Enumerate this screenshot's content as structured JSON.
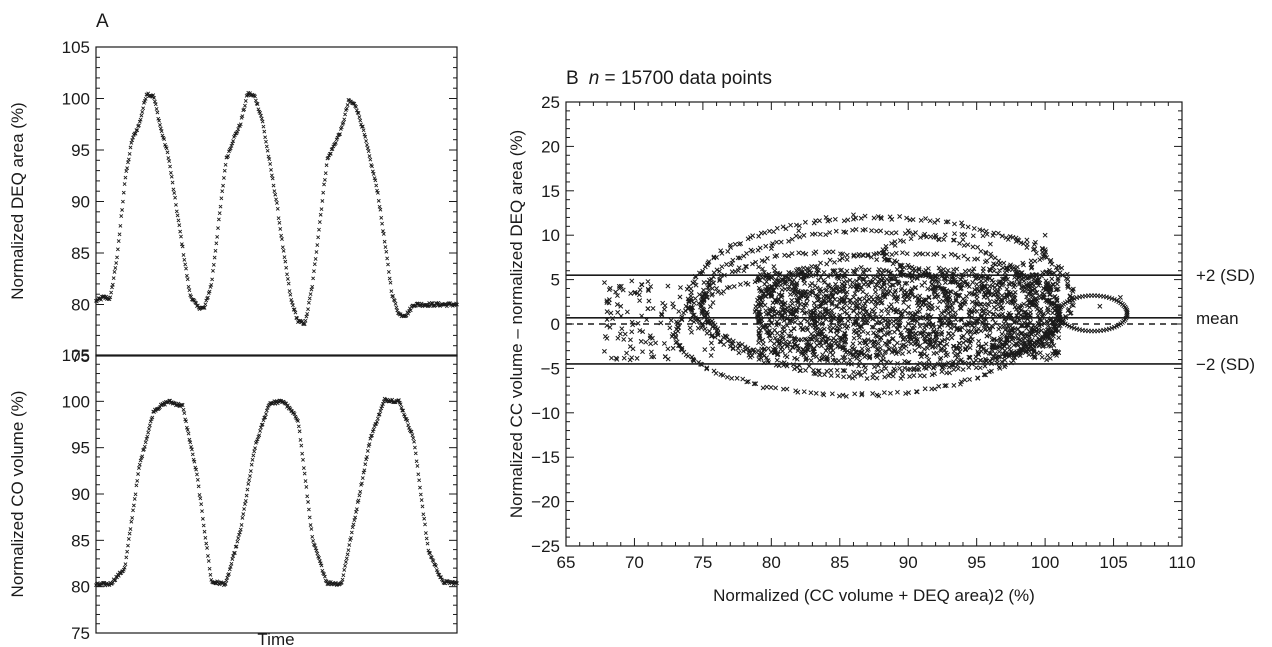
{
  "panel_a_label": "A",
  "panel_b_label": "B",
  "panel_b_n_italic": "n",
  "panel_b_n_text": " = 15700 data points",
  "chart_data": [
    {
      "type": "scatter",
      "panel": "A-top",
      "xlabel": "",
      "ylabel": "Normalized DEQ area (%)",
      "ylim": [
        75,
        105
      ],
      "yticks": [
        75,
        80,
        85,
        90,
        95,
        100,
        105
      ],
      "marker": "x",
      "color": "#1a1a1a",
      "series": [
        {
          "x": [
            0,
            0.02,
            0.04,
            0.06,
            0.08,
            0.1,
            0.12,
            0.14,
            0.16,
            0.18,
            0.2,
            0.22,
            0.24,
            0.26,
            0.28,
            0.3,
            0.32,
            0.34,
            0.36,
            0.38,
            0.4,
            0.42,
            0.44,
            0.46,
            0.48,
            0.5,
            0.52,
            0.54,
            0.56,
            0.58,
            0.6,
            0.62,
            0.64,
            0.66,
            0.68,
            0.7,
            0.72,
            0.74,
            0.76,
            0.78,
            0.8,
            0.82,
            0.84,
            0.86,
            0.88,
            0.9,
            0.92,
            0.94,
            0.96,
            0.98,
            1
          ],
          "y": [
            80.3,
            80.7,
            80.6,
            85,
            92,
            96,
            97.5,
            100.5,
            100.2,
            97,
            94.5,
            90,
            85.5,
            81,
            79.8,
            79.6,
            82,
            88,
            94,
            96,
            97.5,
            100.5,
            100.2,
            98,
            94,
            90,
            85,
            80.5,
            78.3,
            78.2,
            82,
            88,
            94,
            95.5,
            97,
            99.8,
            99.3,
            97,
            94,
            91,
            86,
            81,
            79,
            79,
            80,
            80,
            80,
            80,
            80,
            80,
            80
          ]
        }
      ]
    },
    {
      "type": "scatter",
      "panel": "A-bottom",
      "xlabel": "Time",
      "ylabel": "Normalized CO volume (%)",
      "ylim": [
        75,
        105
      ],
      "yticks": [
        75,
        80,
        85,
        90,
        95,
        100,
        105
      ],
      "marker": "x",
      "color": "#1a1a1a",
      "series": [
        {
          "x": [
            0,
            0.04,
            0.08,
            0.12,
            0.16,
            0.2,
            0.24,
            0.28,
            0.32,
            0.36,
            0.4,
            0.44,
            0.48,
            0.52,
            0.56,
            0.6,
            0.64,
            0.68,
            0.72,
            0.76,
            0.8,
            0.84,
            0.88,
            0.92,
            0.96,
            1
          ],
          "y": [
            80.2,
            80.3,
            82,
            93,
            99,
            100,
            99.5,
            92,
            80.5,
            80.3,
            86,
            95,
            99.8,
            100,
            98,
            85,
            80.4,
            80.3,
            88,
            96,
            100.2,
            100,
            96,
            84,
            80.5,
            80.4
          ]
        }
      ]
    },
    {
      "type": "scatter",
      "panel": "B",
      "title": "",
      "xlabel": "Normalized (CC volume + DEQ area)2 (%)",
      "ylabel": "Normalized CC volume – normalized DEQ area (%)",
      "xlim": [
        65,
        110
      ],
      "ylim": [
        -25,
        25
      ],
      "xticks": [
        65,
        70,
        75,
        80,
        85,
        90,
        95,
        100,
        105,
        110
      ],
      "yticks": [
        -25,
        -20,
        -15,
        -10,
        -5,
        0,
        5,
        10,
        15,
        20,
        25
      ],
      "marker": "x",
      "color": "#1a1a1a",
      "reference_lines": [
        {
          "label": "+2 (SD)",
          "y": 5.5,
          "style": "solid"
        },
        {
          "label": "mean",
          "y": 0.7,
          "style": "solid"
        },
        {
          "label": "",
          "y": 0,
          "style": "dashed"
        },
        {
          "label": "−2 (SD)",
          "y": -4.5,
          "style": "solid"
        }
      ],
      "series": [
        {
          "n": 15700,
          "x_range": [
            67.5,
            106
          ],
          "y_range": [
            -9,
            12.5
          ],
          "x": [
            68,
            69,
            70,
            72,
            74,
            76,
            78,
            80,
            82,
            84,
            86,
            88,
            90,
            92,
            94,
            96,
            98,
            100,
            102,
            104,
            105.5
          ],
          "y": [
            0.5,
            2,
            3.5,
            1,
            2.5,
            4,
            6,
            8.5,
            10.5,
            12,
            12.3,
            12,
            10.5,
            10,
            9.5,
            9,
            9.5,
            10,
            3,
            2,
            3
          ]
        }
      ]
    }
  ]
}
